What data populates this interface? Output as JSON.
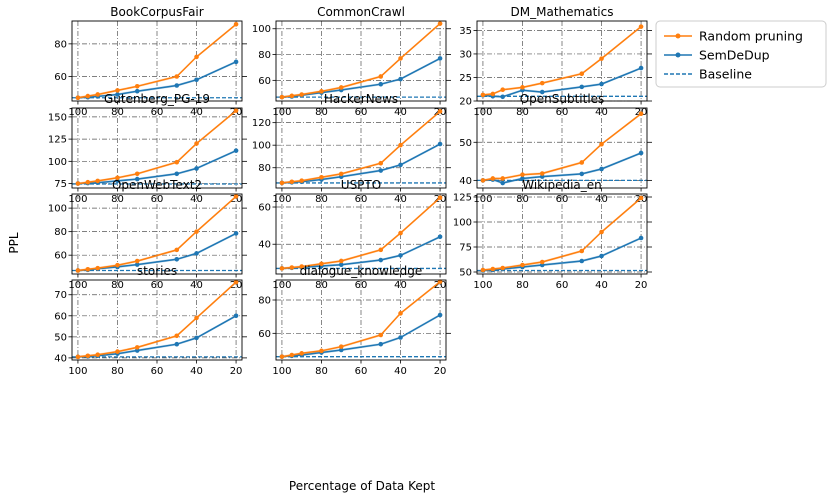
{
  "figure": {
    "ylabel": "PPL",
    "xlabel": "Percentage of Data Kept"
  },
  "legend": {
    "items": [
      {
        "label": "Random pruning",
        "color": "#ff7f0e",
        "style": "line-marker"
      },
      {
        "label": "SemDeDup",
        "color": "#1f77b4",
        "style": "line-marker"
      },
      {
        "label": "Baseline",
        "color": "#1f77b4",
        "style": "dashed"
      }
    ]
  },
  "chart_data": [
    {
      "type": "line",
      "title": "BookCorpusFair",
      "x": [
        100,
        95,
        90,
        80,
        70,
        50,
        40,
        20
      ],
      "ylim": [
        45,
        94
      ],
      "yticks": [
        60,
        80
      ],
      "series": [
        {
          "name": "Random pruning",
          "values": [
            47,
            48,
            49,
            51.5,
            54,
            60,
            72,
            92
          ]
        },
        {
          "name": "SemDeDup",
          "values": [
            47,
            47.3,
            47.8,
            49,
            51,
            54.5,
            58,
            69
          ]
        }
      ],
      "baseline": 47
    },
    {
      "type": "line",
      "title": "CommonCrawl",
      "x": [
        100,
        95,
        90,
        80,
        70,
        50,
        40,
        20
      ],
      "ylim": [
        44,
        106
      ],
      "yticks": [
        60,
        80,
        100
      ],
      "series": [
        {
          "name": "Random pruning",
          "values": [
            47,
            48,
            49,
            51.5,
            54.5,
            63,
            77,
            104
          ]
        },
        {
          "name": "SemDeDup",
          "values": [
            47,
            47.5,
            48.5,
            50.5,
            52.5,
            57,
            61,
            77
          ]
        }
      ],
      "baseline": 47
    },
    {
      "type": "line",
      "title": "DM_Mathematics",
      "x": [
        100,
        95,
        90,
        80,
        70,
        50,
        40,
        20
      ],
      "ylim": [
        20,
        37
      ],
      "yticks": [
        20,
        25,
        30,
        35
      ],
      "series": [
        {
          "name": "Random pruning",
          "values": [
            21.3,
            21.5,
            22.4,
            22.9,
            23.8,
            25.8,
            29,
            35.8
          ]
        },
        {
          "name": "SemDeDup",
          "values": [
            21.2,
            21,
            20.9,
            22.3,
            21.9,
            23,
            23.6,
            27
          ]
        }
      ],
      "baseline": 21
    },
    {
      "type": "line",
      "title": "Gutenberg_PG-19",
      "x": [
        100,
        95,
        90,
        80,
        70,
        50,
        40,
        20
      ],
      "ylim": [
        70,
        160
      ],
      "yticks": [
        75,
        100,
        125,
        150
      ],
      "series": [
        {
          "name": "Random pruning",
          "values": [
            75,
            76.5,
            78,
            81.5,
            86,
            99,
            120,
            157
          ]
        },
        {
          "name": "SemDeDup",
          "values": [
            75,
            75.5,
            76,
            78,
            80,
            86,
            92,
            112
          ]
        }
      ],
      "baseline": 74.5
    },
    {
      "type": "line",
      "title": "HackerNews",
      "x": [
        100,
        95,
        90,
        80,
        70,
        50,
        40,
        20
      ],
      "ylim": [
        62,
        133
      ],
      "yticks": [
        80,
        100,
        120
      ],
      "series": [
        {
          "name": "Random pruning",
          "values": [
            66.5,
            67.5,
            68.5,
            71.5,
            74.5,
            84,
            100,
            130
          ]
        },
        {
          "name": "SemDeDup",
          "values": [
            66.5,
            67,
            67.5,
            69.5,
            72,
            77.5,
            82.5,
            101
          ]
        }
      ],
      "baseline": 66.5
    },
    {
      "type": "line",
      "title": "OpenSubtitles",
      "x": [
        100,
        95,
        90,
        80,
        70,
        50,
        40,
        20
      ],
      "ylim": [
        38,
        59
      ],
      "yticks": [
        40,
        50
      ],
      "series": [
        {
          "name": "Random pruning",
          "values": [
            40,
            40.5,
            40.5,
            41.5,
            41.8,
            44.7,
            49.5,
            57.5
          ]
        },
        {
          "name": "SemDeDup",
          "values": [
            40,
            40.2,
            39.3,
            40.5,
            41,
            41.7,
            43,
            47.2
          ]
        }
      ],
      "baseline": 40
    },
    {
      "type": "line",
      "title": "OpenWebText2",
      "x": [
        100,
        95,
        90,
        80,
        70,
        50,
        40,
        20
      ],
      "ylim": [
        44,
        112
      ],
      "yticks": [
        60,
        80,
        100
      ],
      "series": [
        {
          "name": "Random pruning",
          "values": [
            47,
            48,
            49,
            51.5,
            55,
            64.5,
            80,
            110
          ]
        },
        {
          "name": "SemDeDup",
          "values": [
            47,
            47.5,
            48.5,
            50,
            52,
            56.5,
            61.5,
            78.5
          ]
        }
      ],
      "baseline": 47
    },
    {
      "type": "line",
      "title": "USPTO",
      "x": [
        100,
        95,
        90,
        80,
        70,
        50,
        40,
        20
      ],
      "ylim": [
        24,
        67
      ],
      "yticks": [
        40,
        60
      ],
      "series": [
        {
          "name": "Random pruning",
          "values": [
            27,
            27.5,
            28,
            29.5,
            31,
            37,
            46,
            65
          ]
        },
        {
          "name": "SemDeDup",
          "values": [
            27,
            27.3,
            27.6,
            28.3,
            29,
            31.5,
            34,
            44
          ]
        }
      ],
      "baseline": 27
    },
    {
      "type": "line",
      "title": "Wikipedia_en",
      "x": [
        100,
        95,
        90,
        80,
        70,
        50,
        40,
        20
      ],
      "ylim": [
        48,
        128
      ],
      "yticks": [
        50,
        75,
        100,
        125
      ],
      "series": [
        {
          "name": "Random pruning",
          "values": [
            52,
            53,
            54,
            57,
            60,
            71,
            90,
            124
          ]
        },
        {
          "name": "SemDeDup",
          "values": [
            51.5,
            52,
            53,
            55,
            57,
            61,
            66,
            84
          ]
        }
      ],
      "baseline": 51.5
    },
    {
      "type": "line",
      "title": "stories",
      "x": [
        100,
        95,
        90,
        80,
        70,
        50,
        40,
        20
      ],
      "ylim": [
        39,
        77
      ],
      "yticks": [
        40,
        50,
        60,
        70
      ],
      "series": [
        {
          "name": "Random pruning",
          "values": [
            40.5,
            41,
            41.5,
            43,
            45,
            50.5,
            59,
            76
          ]
        },
        {
          "name": "SemDeDup",
          "values": [
            40.5,
            40.7,
            41,
            42,
            43.5,
            46.5,
            49.5,
            60
          ]
        }
      ],
      "baseline": 40.5
    },
    {
      "type": "line",
      "title": "dialogue_knowledge",
      "x": [
        100,
        95,
        90,
        80,
        70,
        50,
        40,
        20
      ],
      "ylim": [
        44,
        92
      ],
      "yticks": [
        60,
        80
      ],
      "series": [
        {
          "name": "Random pruning",
          "values": [
            46,
            47,
            48,
            49.5,
            52,
            59,
            72,
            91
          ]
        },
        {
          "name": "SemDeDup",
          "values": [
            46,
            46.5,
            47,
            48.5,
            50,
            53.5,
            57.5,
            71
          ]
        }
      ],
      "baseline": 46
    }
  ]
}
